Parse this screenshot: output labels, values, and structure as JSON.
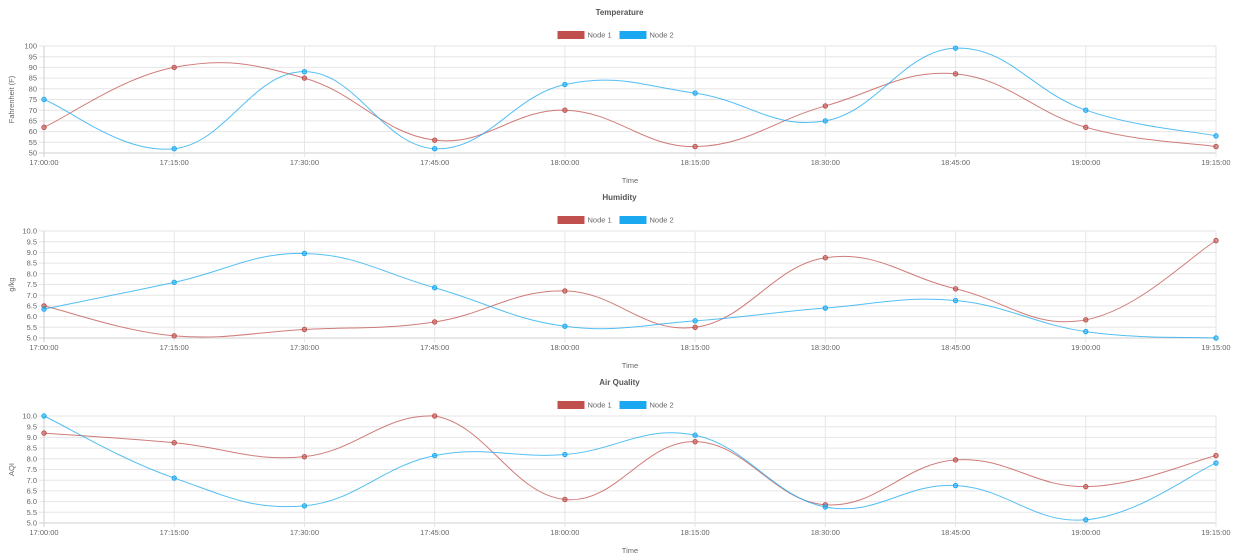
{
  "chart_data": [
    {
      "type": "line",
      "title": "Temperature",
      "xlabel": "Time",
      "ylabel": "Fahrenheit (F)",
      "x": [
        "17:00:00",
        "17:15:00",
        "17:30:00",
        "17:45:00",
        "18:00:00",
        "18:15:00",
        "18:30:00",
        "18:45:00",
        "19:00:00",
        "19:15:00"
      ],
      "ylim": [
        50,
        100
      ],
      "yticks": [
        "100",
        "95",
        "90",
        "85",
        "80",
        "75",
        "70",
        "65",
        "60",
        "55",
        "50"
      ],
      "grid": true,
      "legend": "top-center",
      "series": [
        {
          "name": "Node 1",
          "color": "#c0504d",
          "values": [
            62,
            90,
            85,
            56,
            70,
            53,
            72,
            87,
            62,
            53
          ]
        },
        {
          "name": "Node 2",
          "color": "#1aa9f0",
          "values": [
            75,
            52,
            88,
            52,
            82,
            78,
            65,
            99,
            70,
            58
          ]
        }
      ]
    },
    {
      "type": "line",
      "title": "Humidity",
      "xlabel": "Time",
      "ylabel": "g/kg",
      "x": [
        "17:00:00",
        "17:15:00",
        "17:30:00",
        "17:45:00",
        "18:00:00",
        "18:15:00",
        "18:30:00",
        "18:45:00",
        "19:00:00",
        "19:15:00"
      ],
      "ylim": [
        5.0,
        10.0
      ],
      "yticks": [
        "10.0",
        "9.5",
        "9.0",
        "8.5",
        "8.0",
        "7.5",
        "7.0",
        "6.5",
        "6.0",
        "5.5",
        "5.0"
      ],
      "grid": true,
      "legend": "top-center",
      "series": [
        {
          "name": "Node 1",
          "color": "#c0504d",
          "values": [
            6.5,
            5.1,
            5.4,
            5.75,
            7.2,
            5.5,
            8.75,
            7.3,
            5.85,
            9.55
          ]
        },
        {
          "name": "Node 2",
          "color": "#1aa9f0",
          "values": [
            6.35,
            7.6,
            8.95,
            7.35,
            5.55,
            5.8,
            6.4,
            6.75,
            5.3,
            5.0
          ]
        }
      ]
    },
    {
      "type": "line",
      "title": "Air Quality",
      "xlabel": "Time",
      "ylabel": "AQI",
      "x": [
        "17:00:00",
        "17:15:00",
        "17:30:00",
        "17:45:00",
        "18:00:00",
        "18:15:00",
        "18:30:00",
        "18:45:00",
        "19:00:00",
        "19:15:00"
      ],
      "ylim": [
        5.0,
        10.0
      ],
      "yticks": [
        "10.0",
        "9.5",
        "9.0",
        "8.5",
        "8.0",
        "7.5",
        "7.0",
        "6.5",
        "6.0",
        "5.5",
        "5.0"
      ],
      "grid": true,
      "legend": "top-center",
      "series": [
        {
          "name": "Node 1",
          "color": "#c0504d",
          "values": [
            9.2,
            8.75,
            8.1,
            10.0,
            6.1,
            8.8,
            5.85,
            7.95,
            6.7,
            8.15
          ]
        },
        {
          "name": "Node 2",
          "color": "#1aa9f0",
          "values": [
            10.0,
            7.1,
            5.8,
            8.15,
            8.2,
            9.1,
            5.75,
            6.75,
            5.15,
            7.8
          ]
        }
      ]
    }
  ]
}
